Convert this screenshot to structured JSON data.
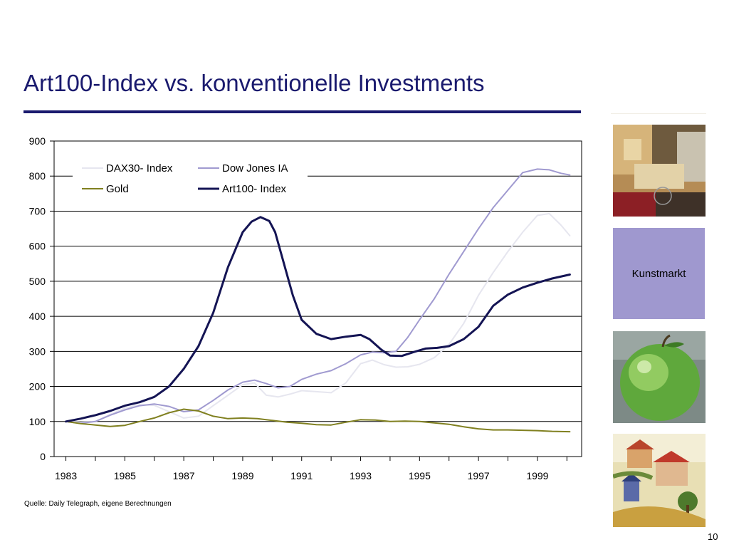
{
  "slide": {
    "title": "Art100-Index vs. konventionelle Investments",
    "source": "Quelle: Daily Telegraph, eigene Berechnungen",
    "page_number": "10",
    "side_label": "Kunstmarkt",
    "side_box_color": "#9f98cf",
    "title_color": "#1a1a6e"
  },
  "side_images": [
    {
      "name": "abstract-painting-image",
      "kind": "abstract painting"
    },
    {
      "name": "green-apple-image",
      "kind": "green apple painting"
    },
    {
      "name": "village-landscape-image",
      "kind": "village landscape painting"
    }
  ],
  "chart_data": {
    "type": "line",
    "ylim": [
      0,
      900
    ],
    "yticks": [
      0,
      100,
      200,
      300,
      400,
      500,
      600,
      700,
      800,
      900
    ],
    "xlim": [
      1982.6,
      2000.5
    ],
    "xticks": [
      1983,
      1985,
      1987,
      1989,
      1991,
      1993,
      1995,
      1997,
      1999
    ],
    "grid": "horizontal",
    "legend_position": "top-left",
    "series": [
      {
        "name": "DAX30- Index",
        "color": "#e6e6ef",
        "width": 2,
        "points": [
          [
            1983,
            100
          ],
          [
            1983.5,
            98
          ],
          [
            1984,
            100
          ],
          [
            1984.5,
            120
          ],
          [
            1985,
            138
          ],
          [
            1985.5,
            148
          ],
          [
            1986,
            146
          ],
          [
            1986.5,
            128
          ],
          [
            1987,
            110
          ],
          [
            1987.5,
            115
          ],
          [
            1988,
            145
          ],
          [
            1988.5,
            175
          ],
          [
            1989,
            205
          ],
          [
            1989.4,
            210
          ],
          [
            1989.8,
            175
          ],
          [
            1990.2,
            170
          ],
          [
            1990.6,
            178
          ],
          [
            1991,
            188
          ],
          [
            1991.5,
            185
          ],
          [
            1992,
            182
          ],
          [
            1992.5,
            210
          ],
          [
            1993,
            265
          ],
          [
            1993.4,
            275
          ],
          [
            1993.8,
            262
          ],
          [
            1994.2,
            255
          ],
          [
            1994.6,
            256
          ],
          [
            1995,
            263
          ],
          [
            1995.5,
            282
          ],
          [
            1996,
            320
          ],
          [
            1996.5,
            380
          ],
          [
            1997,
            460
          ],
          [
            1997.5,
            525
          ],
          [
            1998,
            585
          ],
          [
            1998.5,
            640
          ],
          [
            1999,
            688
          ],
          [
            1999.4,
            693
          ],
          [
            1999.8,
            660
          ],
          [
            2000.1,
            630
          ]
        ]
      },
      {
        "name": "Dow Jones IA",
        "color": "#a09ad0",
        "width": 2,
        "points": [
          [
            1983,
            100
          ],
          [
            1983.5,
            95
          ],
          [
            1984,
            100
          ],
          [
            1984.5,
            118
          ],
          [
            1985,
            133
          ],
          [
            1985.5,
            145
          ],
          [
            1986,
            150
          ],
          [
            1986.5,
            143
          ],
          [
            1987,
            128
          ],
          [
            1987.5,
            133
          ],
          [
            1988,
            160
          ],
          [
            1988.5,
            190
          ],
          [
            1989,
            212
          ],
          [
            1989.4,
            218
          ],
          [
            1989.8,
            208
          ],
          [
            1990.2,
            196
          ],
          [
            1990.6,
            200
          ],
          [
            1991,
            220
          ],
          [
            1991.5,
            235
          ],
          [
            1992,
            245
          ],
          [
            1992.5,
            265
          ],
          [
            1993,
            290
          ],
          [
            1993.4,
            298
          ],
          [
            1993.8,
            296
          ],
          [
            1994.2,
            300
          ],
          [
            1994.6,
            340
          ],
          [
            1995,
            390
          ],
          [
            1995.5,
            450
          ],
          [
            1996,
            520
          ],
          [
            1996.5,
            585
          ],
          [
            1997,
            650
          ],
          [
            1997.5,
            710
          ],
          [
            1998,
            760
          ],
          [
            1998.5,
            810
          ],
          [
            1999,
            820
          ],
          [
            1999.4,
            818
          ],
          [
            1999.8,
            808
          ],
          [
            2000.1,
            803
          ]
        ]
      },
      {
        "name": "Gold",
        "color": "#808020",
        "width": 2,
        "points": [
          [
            1983,
            100
          ],
          [
            1983.5,
            94
          ],
          [
            1984,
            90
          ],
          [
            1984.5,
            86
          ],
          [
            1985,
            89
          ],
          [
            1985.5,
            100
          ],
          [
            1986,
            110
          ],
          [
            1986.5,
            125
          ],
          [
            1987,
            135
          ],
          [
            1987.5,
            130
          ],
          [
            1988,
            115
          ],
          [
            1988.5,
            108
          ],
          [
            1989,
            110
          ],
          [
            1989.5,
            108
          ],
          [
            1990,
            103
          ],
          [
            1990.5,
            98
          ],
          [
            1991,
            95
          ],
          [
            1991.5,
            91
          ],
          [
            1992,
            90
          ],
          [
            1992.5,
            98
          ],
          [
            1993,
            105
          ],
          [
            1993.5,
            104
          ],
          [
            1994,
            100
          ],
          [
            1994.5,
            101
          ],
          [
            1995,
            100
          ],
          [
            1995.5,
            96
          ],
          [
            1996,
            92
          ],
          [
            1996.5,
            85
          ],
          [
            1997,
            79
          ],
          [
            1997.5,
            76
          ],
          [
            1998,
            76
          ],
          [
            1998.5,
            75
          ],
          [
            1999,
            74
          ],
          [
            1999.5,
            72
          ],
          [
            2000.1,
            71
          ]
        ]
      },
      {
        "name": "Art100- Index",
        "color": "#141454",
        "width": 3,
        "points": [
          [
            1983,
            100
          ],
          [
            1983.5,
            108
          ],
          [
            1984,
            118
          ],
          [
            1984.5,
            130
          ],
          [
            1985,
            145
          ],
          [
            1985.5,
            155
          ],
          [
            1986,
            170
          ],
          [
            1986.5,
            200
          ],
          [
            1987,
            250
          ],
          [
            1987.5,
            315
          ],
          [
            1988,
            410
          ],
          [
            1988.5,
            540
          ],
          [
            1989,
            640
          ],
          [
            1989.3,
            670
          ],
          [
            1989.6,
            683
          ],
          [
            1989.9,
            672
          ],
          [
            1990.1,
            640
          ],
          [
            1990.4,
            550
          ],
          [
            1990.7,
            460
          ],
          [
            1991,
            390
          ],
          [
            1991.5,
            350
          ],
          [
            1992,
            335
          ],
          [
            1992.5,
            342
          ],
          [
            1993,
            347
          ],
          [
            1993.3,
            335
          ],
          [
            1993.7,
            305
          ],
          [
            1994,
            288
          ],
          [
            1994.4,
            287
          ],
          [
            1994.8,
            298
          ],
          [
            1995.2,
            308
          ],
          [
            1995.6,
            310
          ],
          [
            1996,
            315
          ],
          [
            1996.5,
            335
          ],
          [
            1997,
            370
          ],
          [
            1997.5,
            430
          ],
          [
            1998,
            462
          ],
          [
            1998.5,
            482
          ],
          [
            1999,
            496
          ],
          [
            1999.5,
            508
          ],
          [
            2000.1,
            519
          ]
        ]
      }
    ]
  }
}
